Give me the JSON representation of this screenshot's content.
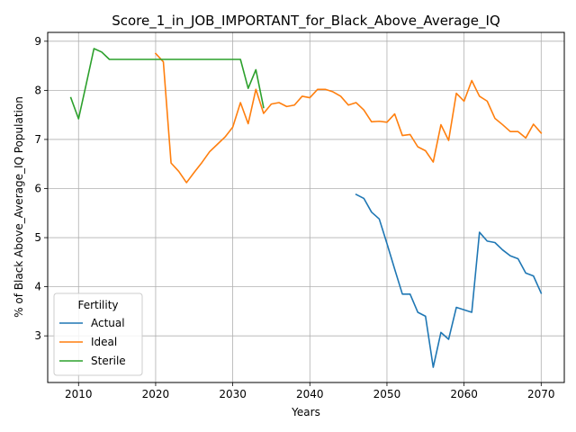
{
  "chart_data": {
    "type": "line",
    "title": "Score_1_in_JOB_IMPORTANT_for_Black_Above_Average_IQ",
    "xlabel": "Years",
    "ylabel": "% of Black Above_Average_IQ Population",
    "xlim": [
      2006,
      2073
    ],
    "ylim": [
      2.05,
      9.18
    ],
    "xticks": [
      2010,
      2020,
      2030,
      2040,
      2050,
      2060,
      2070
    ],
    "yticks": [
      3,
      4,
      5,
      6,
      7,
      8,
      9
    ],
    "grid": true,
    "legend": {
      "title": "Fertility",
      "placement": "lower-left"
    },
    "series": [
      {
        "name": "Actual",
        "color": "#1f77b4",
        "x": [
          2046,
          2047,
          2048,
          2049,
          2050,
          2051,
          2052,
          2053,
          2054,
          2055,
          2056,
          2057,
          2058,
          2059,
          2060,
          2061,
          2062,
          2063,
          2064,
          2065,
          2066,
          2067,
          2068,
          2069,
          2070
        ],
        "y": [
          5.88,
          5.8,
          5.52,
          5.38,
          4.88,
          4.36,
          3.85,
          3.85,
          3.48,
          3.4,
          2.36,
          3.07,
          2.93,
          3.58,
          3.53,
          3.48,
          5.11,
          4.93,
          4.9,
          4.75,
          4.63,
          4.57,
          4.28,
          4.22,
          3.87
        ]
      },
      {
        "name": "Ideal",
        "color": "#ff7f0e",
        "x": [
          2020,
          2021,
          2022,
          2023,
          2024,
          2025,
          2026,
          2027,
          2028,
          2029,
          2030,
          2031,
          2032,
          2033,
          2034,
          2035,
          2036,
          2037,
          2038,
          2039,
          2040,
          2041,
          2042,
          2043,
          2044,
          2045,
          2046,
          2047,
          2048,
          2049,
          2050,
          2051,
          2052,
          2053,
          2054,
          2055,
          2056,
          2057,
          2058,
          2059,
          2060,
          2061,
          2062,
          2063,
          2064,
          2065,
          2066,
          2067,
          2068,
          2069,
          2070
        ],
        "y": [
          8.75,
          8.58,
          6.52,
          6.35,
          6.12,
          6.33,
          6.53,
          6.75,
          6.9,
          7.05,
          7.25,
          7.75,
          7.32,
          8.02,
          7.53,
          7.72,
          7.75,
          7.67,
          7.7,
          7.88,
          7.85,
          8.02,
          8.02,
          7.97,
          7.88,
          7.7,
          7.75,
          7.6,
          7.36,
          7.37,
          7.35,
          7.52,
          7.08,
          7.1,
          6.85,
          6.77,
          6.54,
          7.3,
          6.98,
          7.94,
          7.78,
          8.2,
          7.88,
          7.78,
          7.43,
          7.3,
          7.16,
          7.16,
          7.03,
          7.31,
          7.13
        ]
      },
      {
        "name": "Sterile",
        "color": "#2ca02c",
        "x": [
          2009,
          2010,
          2011,
          2012,
          2013,
          2014,
          2015,
          2016,
          2017,
          2018,
          2019,
          2020,
          2021,
          2022,
          2023,
          2024,
          2025,
          2026,
          2027,
          2028,
          2029,
          2030,
          2031,
          2032,
          2033,
          2034
        ],
        "y": [
          7.85,
          7.42,
          8.13,
          8.85,
          8.78,
          8.63,
          8.63,
          8.63,
          8.63,
          8.63,
          8.63,
          8.63,
          8.63,
          8.63,
          8.63,
          8.63,
          8.63,
          8.63,
          8.63,
          8.63,
          8.63,
          8.63,
          8.63,
          8.04,
          8.42,
          7.65
        ]
      }
    ]
  }
}
